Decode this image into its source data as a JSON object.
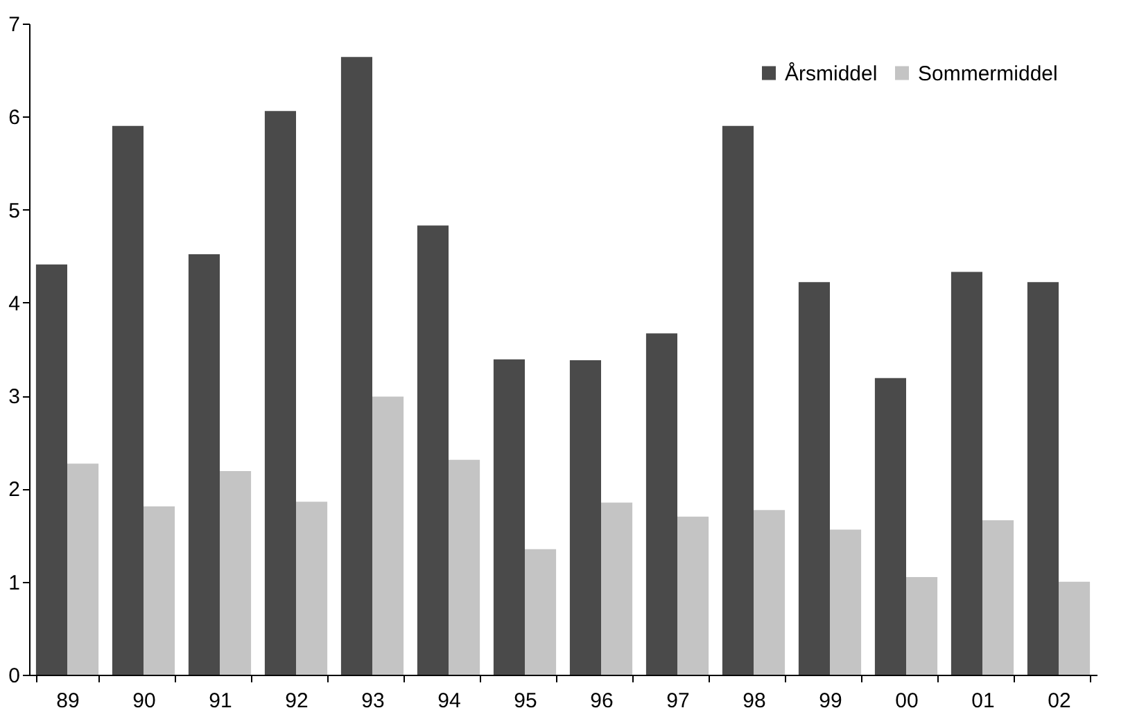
{
  "chart_data": {
    "type": "bar",
    "categories": [
      "89",
      "90",
      "91",
      "92",
      "93",
      "94",
      "95",
      "96",
      "97",
      "98",
      "99",
      "00",
      "01",
      "02"
    ],
    "series": [
      {
        "name": "Årsmiddel",
        "color": "#4a4a4a",
        "values": [
          4.41,
          5.9,
          4.52,
          6.06,
          6.64,
          4.83,
          3.39,
          3.38,
          3.67,
          5.9,
          4.22,
          3.19,
          4.33,
          4.22
        ]
      },
      {
        "name": "Sommermiddel",
        "color": "#c4c4c4",
        "values": [
          2.27,
          1.81,
          2.19,
          1.86,
          2.99,
          2.31,
          1.35,
          1.85,
          1.7,
          1.77,
          1.56,
          1.05,
          1.66,
          1.0
        ]
      }
    ],
    "ylim": [
      0,
      7
    ],
    "yticks": [
      0,
      1,
      2,
      3,
      4,
      5,
      6,
      7
    ],
    "grid": false,
    "legend": "top right"
  }
}
